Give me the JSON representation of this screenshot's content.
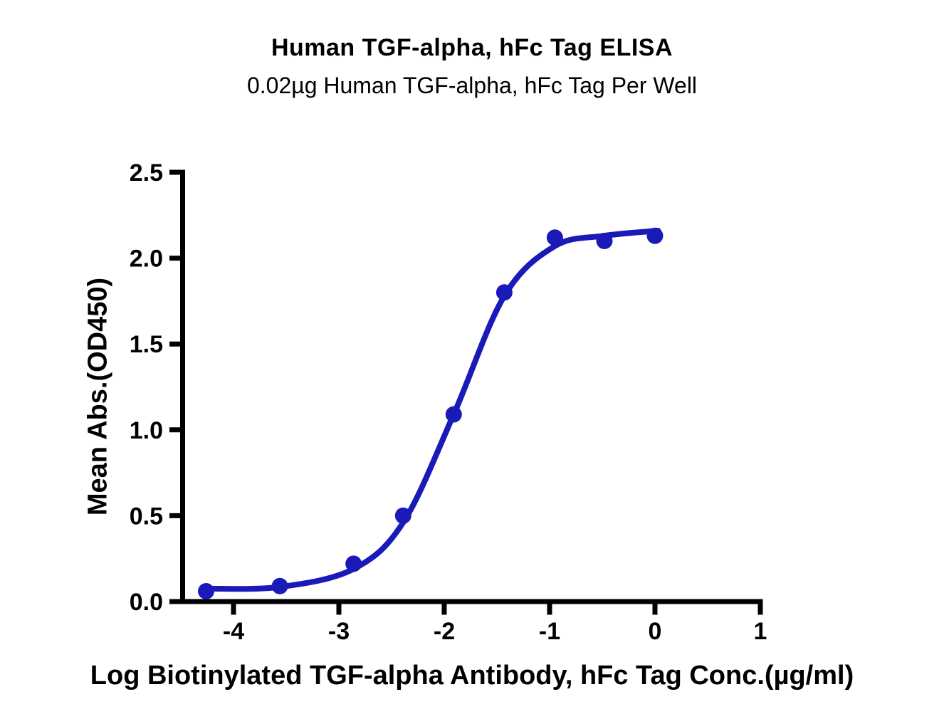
{
  "chart_data": {
    "type": "scatter",
    "title": "Human TGF-alpha, hFc Tag ELISA",
    "subtitle": "0.02µg Human TGF-alpha, hFc Tag Per Well",
    "xlabel": "Log Biotinylated TGF-alpha Antibody, hFc Tag Conc.(µg/ml)",
    "ylabel": "Mean Abs.(OD450)",
    "xlim": [
      -4.48,
      1
    ],
    "ylim": [
      0,
      2.5
    ],
    "grid": false,
    "legend": "none",
    "x_ticks": [
      {
        "v": -4,
        "label": "-4"
      },
      {
        "v": -3,
        "label": "-3"
      },
      {
        "v": -2,
        "label": "-2"
      },
      {
        "v": -1,
        "label": "-1"
      },
      {
        "v": 0,
        "label": "0"
      },
      {
        "v": 1,
        "label": "1"
      }
    ],
    "y_ticks": [
      {
        "v": 0.0,
        "label": "0.0"
      },
      {
        "v": 0.5,
        "label": "0.5"
      },
      {
        "v": 1.0,
        "label": "1.0"
      },
      {
        "v": 1.5,
        "label": "1.5"
      },
      {
        "v": 2.0,
        "label": "2.0"
      },
      {
        "v": 2.5,
        "label": "2.5"
      }
    ],
    "points": [
      {
        "x": -4.26,
        "y": 0.06
      },
      {
        "x": -3.56,
        "y": 0.09
      },
      {
        "x": -2.86,
        "y": 0.22
      },
      {
        "x": -2.39,
        "y": 0.5
      },
      {
        "x": -1.91,
        "y": 1.09
      },
      {
        "x": -1.43,
        "y": 1.8
      },
      {
        "x": -0.95,
        "y": 2.12
      },
      {
        "x": -0.48,
        "y": 2.1
      },
      {
        "x": 0.0,
        "y": 2.13
      }
    ],
    "fit_curve_anchors": [
      {
        "x": -4.26,
        "y": 0.075
      },
      {
        "x": -3.56,
        "y": 0.085
      },
      {
        "x": -2.86,
        "y": 0.19
      },
      {
        "x": -2.39,
        "y": 0.46
      },
      {
        "x": -1.91,
        "y": 1.09
      },
      {
        "x": -1.43,
        "y": 1.78
      },
      {
        "x": -0.95,
        "y": 2.07
      },
      {
        "x": -0.48,
        "y": 2.13
      },
      {
        "x": 0.03,
        "y": 2.16
      }
    ],
    "colors": {
      "series": "#1A1AB8",
      "axis": "#000000",
      "text": "#000000"
    }
  }
}
